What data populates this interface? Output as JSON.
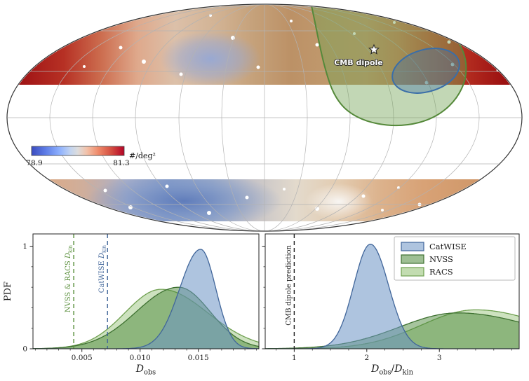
{
  "figure": {
    "map": {
      "projection": "mollweide",
      "colorbar": {
        "min_label": "78.9",
        "max_label": "81.3",
        "unit": "#/deg²",
        "cmap_left": "#3b4cc0",
        "cmap_mid": "#dddcdc",
        "cmap_right": "#b40426"
      },
      "annotation": "CMB dipole",
      "contours": [
        {
          "name": "NVSS/RACS dipole region",
          "color": "#55893a"
        },
        {
          "name": "CatWISE dipole region",
          "color": "#3a6ea8"
        }
      ]
    }
  },
  "chart_data": [
    {
      "type": "area",
      "panel": "observed dipole amplitude posteriors",
      "xlabel_parts": [
        {
          "t": "D",
          "style": "cal"
        },
        {
          "t": "obs",
          "style": "sub"
        }
      ],
      "ylabel": "PDF",
      "xlim": [
        0.0008,
        0.0202
      ],
      "ylim": [
        0,
        1.12
      ],
      "xticks": [
        {
          "v": 0.005,
          "label": "0.005"
        },
        {
          "v": 0.01,
          "label": "0.010"
        },
        {
          "v": 0.015,
          "label": "0.015"
        }
      ],
      "yticks": [
        {
          "v": 0,
          "label": "0"
        },
        {
          "v": 1,
          "label": "1"
        }
      ],
      "x_minor_step": 0.001,
      "y_minor_step": 0.2,
      "series": [
        {
          "name": "RACS",
          "mu": 0.0118,
          "sig_l": 0.0031,
          "sig_r": 0.004,
          "amp": 0.58,
          "fill": "#90bf70",
          "stroke": "#6fa050",
          "fill_opacity": 0.45
        },
        {
          "name": "NVSS",
          "mu": 0.0133,
          "sig_l": 0.0036,
          "sig_r": 0.0027,
          "amp": 0.6,
          "fill": "#4e8a3c",
          "stroke": "#3d7030",
          "fill_opacity": 0.5
        },
        {
          "name": "CatWISE",
          "mu": 0.0152,
          "sig_l": 0.0018,
          "sig_r": 0.0013,
          "amp": 0.97,
          "fill": "#6b93c4",
          "stroke": "#41669a",
          "fill_opacity": 0.55
        }
      ],
      "vlines": [
        {
          "x": 0.0043,
          "color": "#5a8f3c",
          "prefix": "NVSS & RACS ",
          "symbol": "D",
          "sub": "kin"
        },
        {
          "x": 0.0072,
          "color": "#41669a",
          "prefix": "CatWISE ",
          "symbol": "D",
          "sub": "kin"
        }
      ]
    },
    {
      "type": "area",
      "panel": "dipole ratio posteriors",
      "xlabel_parts": [
        {
          "t": "D",
          "style": "cal"
        },
        {
          "t": "obs",
          "style": "sub"
        },
        {
          "t": "/",
          "style": "norm"
        },
        {
          "t": "D",
          "style": "cal"
        },
        {
          "t": "kin",
          "style": "sub"
        }
      ],
      "ylabel": "",
      "xlim": [
        0.6,
        4.1
      ],
      "ylim": [
        0,
        1.12
      ],
      "xticks": [
        {
          "v": 1,
          "label": "1"
        },
        {
          "v": 2,
          "label": "2"
        },
        {
          "v": 3,
          "label": "3"
        }
      ],
      "yticks": [
        {
          "v": 0,
          "label": ""
        },
        {
          "v": 1,
          "label": ""
        }
      ],
      "x_minor_step": 0.25,
      "y_minor_step": 0.2,
      "series": [
        {
          "name": "RACS",
          "mu": 3.5,
          "sig_l": 0.75,
          "sig_r": 1.0,
          "amp": 0.38,
          "fill": "#90bf70",
          "stroke": "#6fa050",
          "fill_opacity": 0.45
        },
        {
          "name": "NVSS",
          "mu": 3.25,
          "sig_l": 0.8,
          "sig_r": 1.1,
          "amp": 0.35,
          "fill": "#4e8a3c",
          "stroke": "#3d7030",
          "fill_opacity": 0.5
        },
        {
          "name": "CatWISE",
          "mu": 2.05,
          "sig_l": 0.23,
          "sig_r": 0.25,
          "amp": 1.02,
          "fill": "#6b93c4",
          "stroke": "#41669a",
          "fill_opacity": 0.55
        }
      ],
      "vlines": [
        {
          "x": 1,
          "color": "#222222",
          "prefix": "CMB dipole prediction",
          "symbol": "",
          "sub": ""
        }
      ],
      "legend": [
        {
          "label": "CatWISE",
          "fill": "#6b93c4",
          "stroke": "#41669a"
        },
        {
          "label": "NVSS",
          "fill": "#4e8a3c",
          "stroke": "#3d7030"
        },
        {
          "label": "RACS",
          "fill": "#90bf70",
          "stroke": "#6fa050"
        }
      ]
    }
  ]
}
